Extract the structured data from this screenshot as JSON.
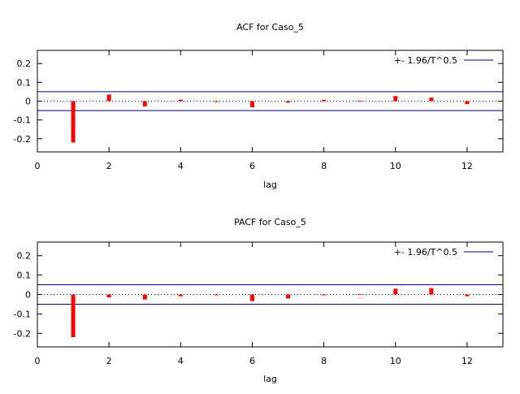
{
  "chart_data": [
    {
      "type": "bar",
      "title": "ACF for Caso_5",
      "xlabel": "lag",
      "ylabel": "",
      "xlim": [
        0,
        13
      ],
      "ylim": [
        -0.27,
        0.27
      ],
      "x_ticks": [
        0,
        2,
        4,
        6,
        8,
        10,
        12
      ],
      "y_ticks": [
        0.2,
        0.1,
        0,
        -0.1,
        -0.2
      ],
      "x_tick_labels": [
        "0",
        "2",
        "4",
        "6",
        "8",
        "10",
        "12"
      ],
      "y_tick_labels": [
        "0.2",
        "0.1",
        "0",
        "-0.1",
        "-0.2"
      ],
      "legend_label": "+- 1.96/T^0.5",
      "legend_position": "top-right",
      "confidence_band": 0.05,
      "bar_color": "#ff0000",
      "band_color": "#000080",
      "lags": [
        1,
        2,
        3,
        4,
        5,
        6,
        7,
        8,
        9,
        10,
        11,
        12
      ],
      "values": [
        -0.22,
        0.035,
        -0.028,
        0.008,
        0,
        -0.033,
        -0.008,
        0.007,
        0.002,
        0.027,
        0.019,
        -0.016
      ]
    },
    {
      "type": "bar",
      "title": "PACF for Caso_5",
      "xlabel": "lag",
      "ylabel": "",
      "xlim": [
        0,
        13
      ],
      "ylim": [
        -0.27,
        0.27
      ],
      "x_ticks": [
        0,
        2,
        4,
        6,
        8,
        10,
        12
      ],
      "y_ticks": [
        0.2,
        0.1,
        0,
        -0.1,
        -0.2
      ],
      "x_tick_labels": [
        "0",
        "2",
        "4",
        "6",
        "8",
        "10",
        "12"
      ],
      "y_tick_labels": [
        "0.2",
        "0.1",
        "0",
        "-0.1",
        "-0.2"
      ],
      "legend_label": "+- 1.96/T^0.5",
      "legend_position": "top-right",
      "confidence_band": 0.05,
      "bar_color": "#ff0000",
      "band_color": "#000080",
      "lags": [
        1,
        2,
        3,
        4,
        5,
        6,
        7,
        8,
        9,
        10,
        11,
        12
      ],
      "values": [
        -0.22,
        -0.015,
        -0.026,
        -0.009,
        0,
        -0.034,
        -0.021,
        0,
        0.002,
        0.03,
        0.033,
        -0.009
      ]
    }
  ]
}
